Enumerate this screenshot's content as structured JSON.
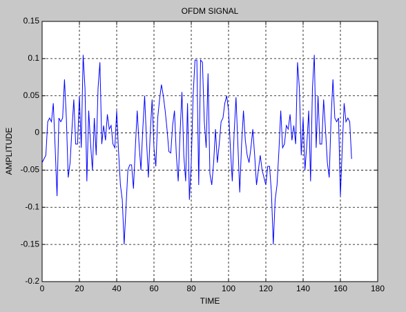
{
  "chart_data": {
    "type": "line",
    "title": "OFDM SIGNAL",
    "xlabel": "TIME",
    "ylabel": "AMPLITUDE",
    "x": [
      0,
      1,
      2,
      3,
      4,
      5,
      6,
      7,
      8,
      9,
      10,
      11,
      12,
      13,
      14,
      15,
      16,
      17,
      18,
      19,
      20,
      21,
      22,
      23,
      24,
      25,
      26,
      27,
      28,
      29,
      30,
      31,
      32,
      33,
      34,
      35,
      36,
      37,
      38,
      39,
      40,
      41,
      42,
      43,
      44,
      45,
      46,
      47,
      48,
      49,
      50,
      51,
      52,
      53,
      54,
      55,
      56,
      57,
      58,
      59,
      60,
      61,
      62,
      63,
      64,
      65,
      66,
      67,
      68,
      69,
      70,
      71,
      72,
      73,
      74,
      75,
      76,
      77,
      78,
      79,
      80,
      81,
      82,
      83,
      84,
      85,
      86,
      87,
      88,
      89,
      90,
      91,
      92,
      93,
      94,
      95,
      96,
      97,
      98,
      99,
      100,
      101,
      102,
      103,
      104,
      105,
      106,
      107,
      108,
      109,
      110,
      111,
      112,
      113,
      114,
      115,
      116,
      117,
      118,
      119,
      120,
      121,
      122,
      123,
      124,
      125,
      126,
      127,
      128,
      129,
      130,
      131,
      132,
      133,
      134,
      135,
      136,
      137,
      138,
      139,
      140,
      141,
      142,
      143,
      144,
      145,
      146,
      147,
      148,
      149,
      150,
      151,
      152,
      153,
      154,
      155,
      156,
      157,
      158,
      159,
      160,
      161,
      162,
      163,
      164,
      165,
      166
    ],
    "series": [
      {
        "color": "#0000ff",
        "values": [
          -0.04,
          -0.035,
          -0.03,
          0.015,
          0.02,
          0.015,
          0.04,
          -0.02,
          -0.085,
          0.02,
          0.015,
          0.02,
          0.072,
          0.02,
          -0.06,
          -0.04,
          0.005,
          0.045,
          -0.015,
          -0.015,
          0.05,
          -0.02,
          0.105,
          0.06,
          -0.065,
          0.03,
          -0.015,
          -0.05,
          0.02,
          -0.03,
          0.06,
          0.095,
          -0.015,
          0.01,
          -0.01,
          0.025,
          0.005,
          0.01,
          -0.015,
          -0.02,
          0.03,
          -0.025,
          -0.07,
          -0.09,
          -0.15,
          -0.1,
          -0.05,
          -0.043,
          -0.043,
          -0.075,
          -0.02,
          0.03,
          -0.015,
          -0.05,
          0.005,
          0.05,
          -0.01,
          -0.06,
          0,
          0.045,
          -0.02,
          -0.045,
          0.02,
          0.045,
          0.065,
          0.05,
          0.03,
          0.005,
          -0.025,
          -0.027,
          0.01,
          0.03,
          -0.03,
          -0.065,
          0,
          0.055,
          -0.03,
          -0.065,
          0.04,
          -0.09,
          -0.04,
          0.05,
          0.098,
          0.098,
          -0.07,
          0.098,
          0.095,
          0.015,
          -0.02,
          0.08,
          -0.055,
          -0.07,
          -0.04,
          0.005,
          -0.04,
          -0.015,
          0.015,
          0.02,
          0.04,
          0.05,
          0.03,
          -0.02,
          -0.065,
          0,
          0.048,
          -0.015,
          -0.08,
          -0.015,
          0.03,
          -0.01,
          -0.03,
          -0.04,
          -0.02,
          0.005,
          -0.03,
          -0.07,
          -0.05,
          -0.03,
          -0.05,
          -0.06,
          -0.07,
          -0.045,
          -0.045,
          -0.08,
          -0.15,
          -0.09,
          -0.07,
          -0.025,
          0.03,
          -0.02,
          -0.015,
          0.01,
          0.005,
          0.025,
          -0.01,
          0.01,
          -0.015,
          0.095,
          0.06,
          -0.03,
          0.02,
          -0.05,
          -0.015,
          0.03,
          -0.065,
          0.06,
          0.105,
          -0.02,
          0.05,
          -0.015,
          -0.015,
          0.045,
          0.005,
          -0.04,
          -0.06,
          0.02,
          0.072,
          0.02,
          0.015,
          0.02,
          -0.085,
          -0.02,
          0.04,
          0.015,
          0.02,
          0.015,
          -0.035
        ]
      }
    ],
    "xlim": [
      0,
      180
    ],
    "xticks": [
      0,
      20,
      40,
      60,
      80,
      100,
      120,
      140,
      160,
      180
    ],
    "ylim": [
      -0.2,
      0.15
    ],
    "yticks": [
      -0.2,
      -0.15,
      -0.1,
      -0.05,
      0,
      0.05,
      0.1,
      0.15
    ],
    "grid": true
  }
}
